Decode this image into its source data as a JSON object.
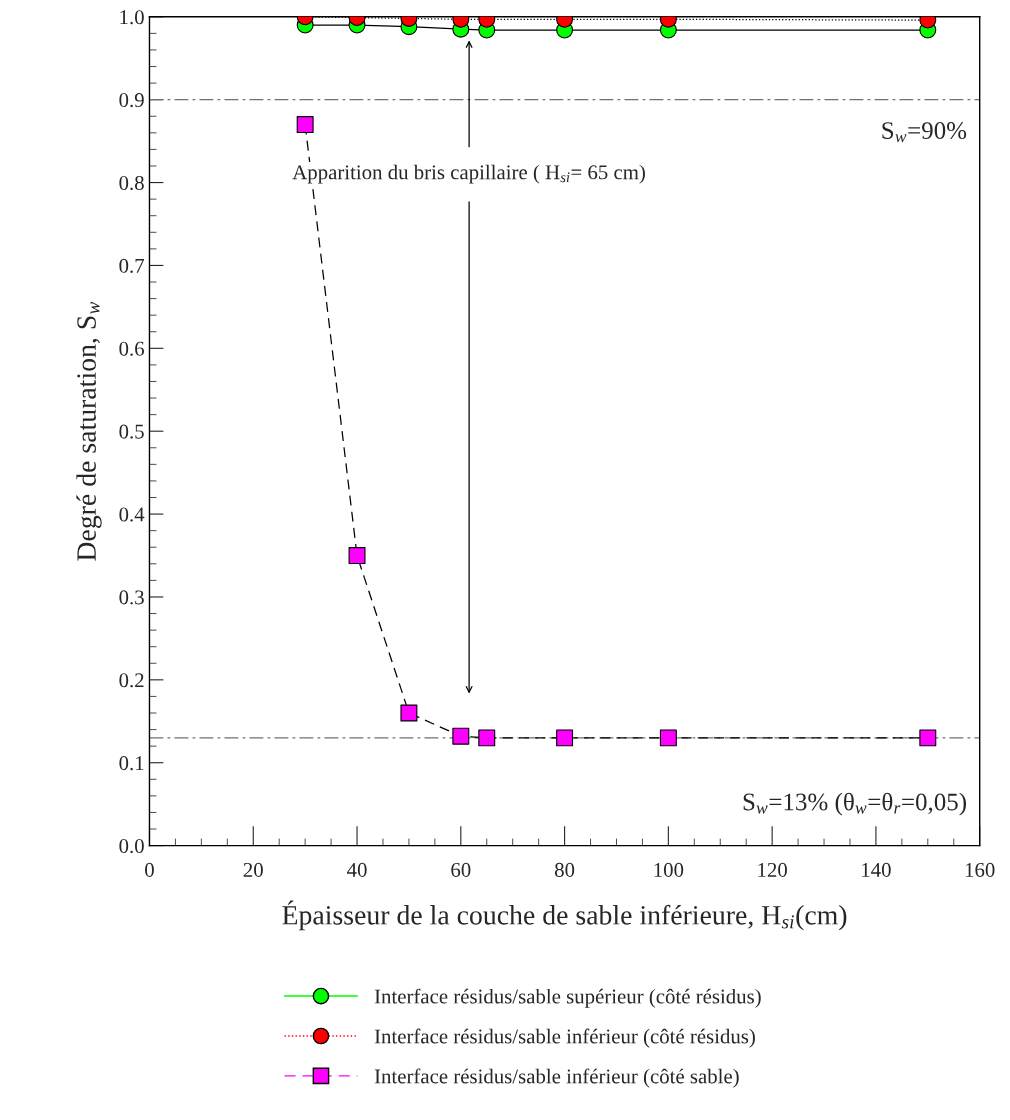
{
  "chart_data": {
    "type": "line",
    "xlabel": "Épaisseur de la couche de sable inférieure, H$_{si}$(cm)",
    "ylabel": "Degré de saturation, S$_{w}$",
    "x": [
      30,
      40,
      50,
      60,
      65,
      80,
      100,
      150
    ],
    "series": [
      {
        "name": "Interface résidus/sable supérieur (côté résidus)",
        "color": "#00ff00",
        "marker": "circle",
        "line_style": "solid",
        "values": [
          0.99,
          0.99,
          0.988,
          0.985,
          0.984,
          0.984,
          0.984,
          0.984
        ]
      },
      {
        "name": "Interface résidus/sable inférieur (côté résidus)",
        "color": "#ff0000",
        "marker": "circle",
        "line_style": "dotted",
        "values": [
          1.0,
          0.999,
          0.998,
          0.997,
          0.997,
          0.997,
          0.997,
          0.996
        ]
      },
      {
        "name": "Interface résidus/sable inférieur (côté sable)",
        "color": "#ff00ff",
        "marker": "square",
        "line_style": "dashed",
        "values": [
          0.87,
          0.35,
          0.16,
          0.132,
          0.13,
          0.13,
          0.13,
          0.13
        ]
      }
    ],
    "xlim": [
      0,
      160
    ],
    "xticks": [
      0,
      20,
      40,
      60,
      80,
      100,
      120,
      140,
      160
    ],
    "ylim": [
      0,
      1
    ],
    "yticks": [
      {
        "value": 0,
        "label": "0.0"
      },
      0.1,
      0.2,
      0.3,
      0.4,
      0.5,
      0.6,
      0.7,
      0.8,
      0.9,
      {
        "value": 1,
        "label": "1.0"
      }
    ],
    "ref_lines": [
      {
        "axis": "y",
        "value": 0.9,
        "label": "S$_{w}$=90%",
        "color": "#707070",
        "line_style": "dashdot"
      },
      {
        "axis": "y",
        "value": 0.13,
        "label": "S$_{w}$=13% (θ$_{w}$=θ$_{r}$=0,05)",
        "color": "#707070",
        "line_style": "dashdot"
      }
    ],
    "annotations": [
      "Apparition du bris capillaire ( H$_{si}$= 65 cm)"
    ],
    "grid": false,
    "legend": "bottom"
  }
}
